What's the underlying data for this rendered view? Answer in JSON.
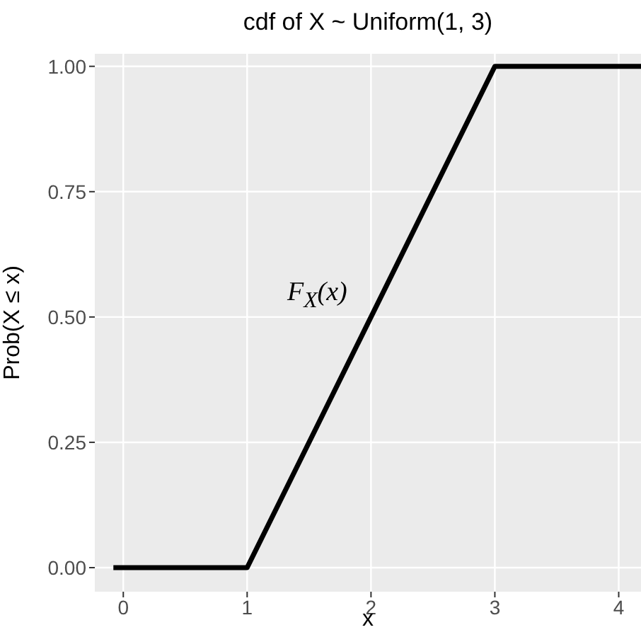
{
  "chart_data": {
    "type": "line",
    "title": "cdf of X ~ Uniform(1, 3)",
    "xlabel": "x",
    "ylabel": "Prob(X ≤ x)",
    "x": [
      -0.08,
      1,
      3,
      4.18
    ],
    "series": [
      {
        "color": "#000000",
        "values": [
          0,
          0,
          1,
          1
        ]
      }
    ],
    "xlim": [
      -0.23,
      4.18
    ],
    "ylim": [
      -0.048,
      1.025
    ],
    "xticks": [
      0,
      1,
      2,
      3,
      4
    ],
    "yticks": [
      {
        "value": 0,
        "label": "0.00"
      },
      {
        "value": 0.25,
        "label": "0.25"
      },
      {
        "value": 0.5,
        "label": "0.50"
      },
      {
        "value": 0.75,
        "label": "0.75"
      },
      {
        "value": 1,
        "label": "1.00"
      }
    ],
    "grid": true,
    "marker": "none",
    "line_style": "solid",
    "annotations": [
      "F$_{X}$(x)"
    ]
  }
}
